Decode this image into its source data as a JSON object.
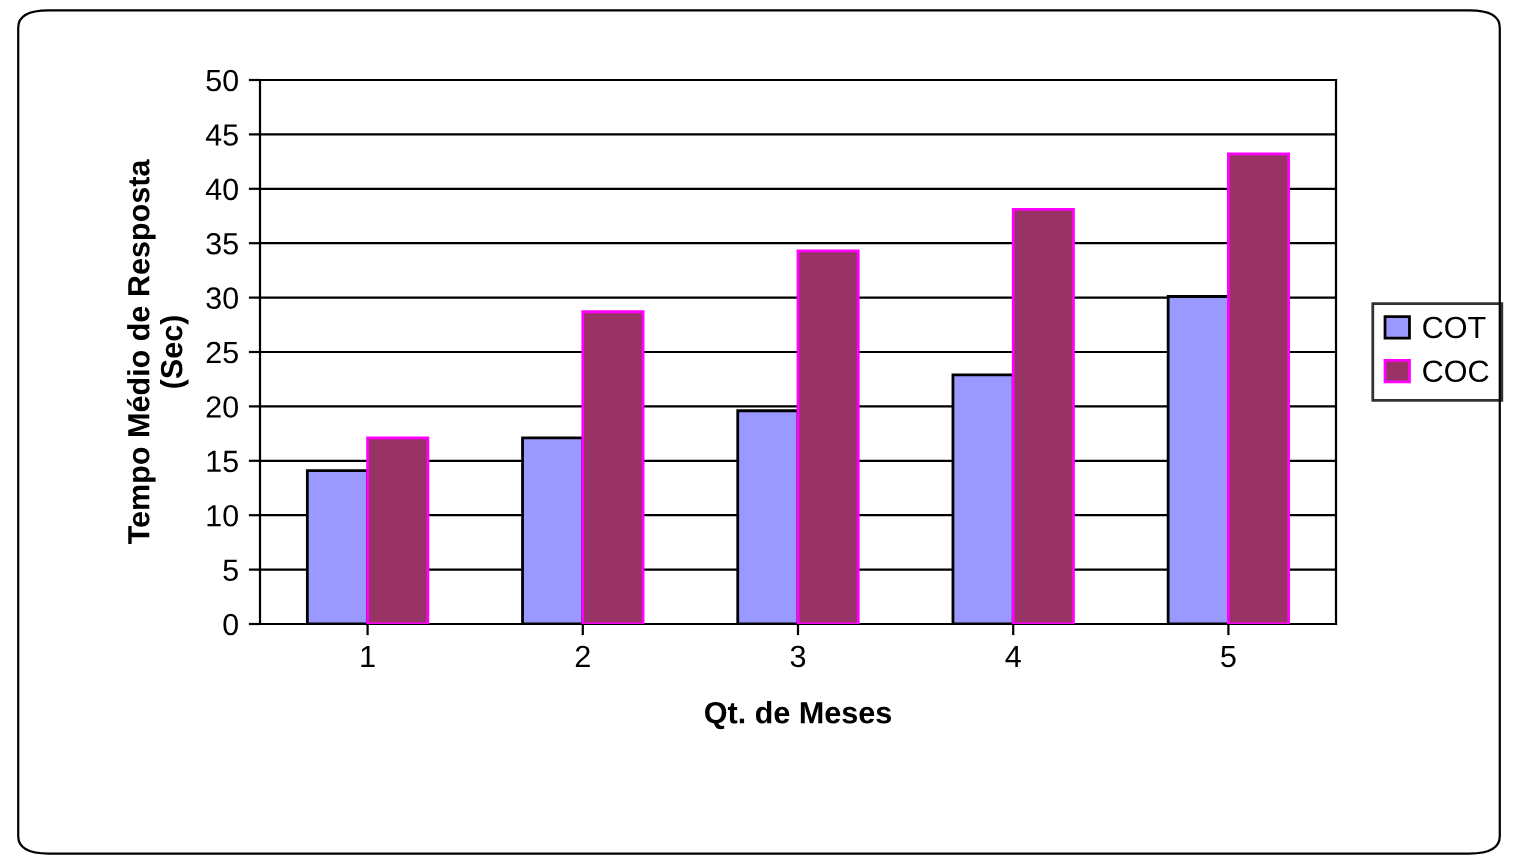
{
  "chart_data": {
    "type": "bar",
    "xlabel": "Qt. de Meses",
    "ylabel": "Tempo Médio de Resposta\n(Sec)",
    "categories": [
      "1",
      "2",
      "3",
      "4",
      "5"
    ],
    "series": [
      {
        "name": "COT",
        "color": "#9999ff",
        "values": [
          14.1,
          17.1,
          19.6,
          22.9,
          30.1
        ]
      },
      {
        "name": "COC",
        "color": "#993366",
        "values": [
          17.1,
          28.7,
          34.3,
          38.1,
          43.2
        ]
      }
    ],
    "ylim": [
      0,
      50
    ],
    "yticks": [
      0,
      5,
      10,
      15,
      20,
      25,
      30,
      35,
      40,
      45,
      50
    ],
    "grid": "y",
    "legend": "right"
  }
}
